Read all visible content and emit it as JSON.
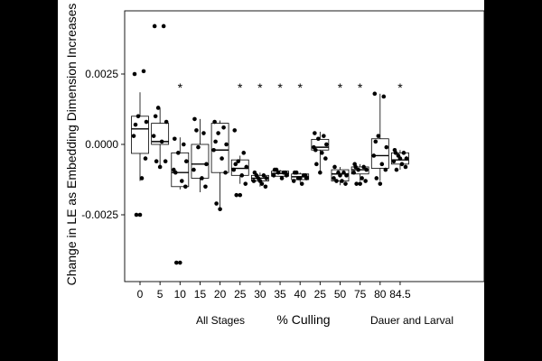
{
  "chart_data": {
    "type": "box",
    "ylabel": "Change in LE as Embedding Dimension Increases",
    "xlabel": "% Culling",
    "group_labels": [
      "All Stages",
      "Dauer and Larval"
    ],
    "y_ticks": [
      0.0025,
      0.0,
      -0.0025
    ],
    "y_tick_labels": [
      "0.0025",
      "0.0000",
      "-0.0025"
    ],
    "ylim": [
      -0.0047,
      0.0047
    ],
    "categories": [
      "0",
      "5",
      "10",
      "15",
      "20",
      "25",
      "30",
      "35",
      "40",
      "25",
      "50",
      "75",
      "80",
      "84.5"
    ],
    "significance_marker": "*",
    "boxes": [
      {
        "category": "0",
        "q1": -0.00032,
        "median": 0.00055,
        "q3": 0.001,
        "whisker_low": -0.0013,
        "whisker_high": 0.00185,
        "significant": false
      },
      {
        "category": "5",
        "q1": 0.0,
        "median": 0.0001,
        "q3": 0.00075,
        "whisker_low": -0.00085,
        "whisker_high": 0.0013,
        "significant": false
      },
      {
        "category": "10",
        "q1": -0.0015,
        "median": -0.001,
        "q3": -0.0003,
        "whisker_low": -0.0016,
        "whisker_high": 0.00025,
        "significant": true
      },
      {
        "category": "15",
        "q1": -0.0012,
        "median": -0.0007,
        "q3": 0.0,
        "whisker_low": -0.0017,
        "whisker_high": 0.0009,
        "significant": false
      },
      {
        "category": "20",
        "q1": -0.001,
        "median": -0.0002,
        "q3": 0.00075,
        "whisker_low": -0.00235,
        "whisker_high": 0.00085,
        "significant": false
      },
      {
        "category": "25",
        "q1": -0.0011,
        "median": -0.00085,
        "q3": -0.00055,
        "whisker_low": -0.0014,
        "whisker_high": -0.0004,
        "significant": true
      },
      {
        "category": "30",
        "q1": -0.0013,
        "median": -0.0012,
        "q3": -0.0011,
        "whisker_low": -0.0015,
        "whisker_high": -0.001,
        "significant": true
      },
      {
        "category": "35",
        "q1": -0.00113,
        "median": -0.00103,
        "q3": -0.00095,
        "whisker_low": -0.00115,
        "whisker_high": -0.0009,
        "significant": true
      },
      {
        "category": "40",
        "q1": -0.00125,
        "median": -0.00115,
        "q3": -0.00105,
        "whisker_low": -0.00135,
        "whisker_high": -0.001,
        "significant": true
      },
      {
        "category": "25",
        "q1": -0.0002,
        "median": -0.0001,
        "q3": 0.00018,
        "whisker_low": -0.001,
        "whisker_high": 0.00045,
        "significant": false
      },
      {
        "category": "50",
        "q1": -0.0013,
        "median": -0.00105,
        "q3": -0.0009,
        "whisker_low": -0.00145,
        "whisker_high": -0.0008,
        "significant": true
      },
      {
        "category": "75",
        "q1": -0.00105,
        "median": -0.0009,
        "q3": -0.0008,
        "whisker_low": -0.0013,
        "whisker_high": -0.0007,
        "significant": true
      },
      {
        "category": "80",
        "q1": -0.00085,
        "median": -0.0004,
        "q3": 0.0002,
        "whisker_low": -0.0013,
        "whisker_high": 0.0018,
        "significant": false
      },
      {
        "category": "84.5",
        "q1": -0.0007,
        "median": -0.00055,
        "q3": -0.0003,
        "whisker_low": -0.0009,
        "whisker_high": -0.0002,
        "significant": true
      }
    ],
    "points": [
      [
        0.0025,
        0.0026,
        0.001,
        0.0008,
        0.0003,
        -0.0012,
        -0.0005,
        -0.0025,
        -0.0025,
        0.0007
      ],
      [
        0.0042,
        0.0042,
        0.0013,
        0.0008,
        0.0003,
        0.0001,
        -0.0006,
        -0.0006,
        -0.0008,
        0.001
      ],
      [
        0.0002,
        0.0,
        -0.0003,
        -0.0006,
        -0.0009,
        -0.0013,
        -0.0015,
        -0.0042,
        -0.0042,
        -0.001
      ],
      [
        0.0009,
        0.0004,
        -0.0001,
        -0.0007,
        -0.0009,
        -0.0012,
        -0.0015,
        0.0005
      ],
      [
        0.0008,
        0.0006,
        0.0004,
        0.0,
        -0.0002,
        -0.0005,
        -0.001,
        -0.0021,
        -0.0023,
        0.0001
      ],
      [
        0.0005,
        -0.0003,
        -0.0006,
        -0.0008,
        -0.0009,
        -0.0011,
        -0.0014,
        -0.0018,
        -0.0018,
        -0.0007
      ],
      [
        -0.001,
        -0.0011,
        -0.0012,
        -0.0012,
        -0.0013,
        -0.0014,
        -0.0015,
        -0.0011,
        -0.0013
      ],
      [
        -0.0009,
        -0.001,
        -0.001,
        -0.0011,
        -0.0011,
        -0.0012,
        -0.001,
        -0.0009
      ],
      [
        -0.001,
        -0.0011,
        -0.0012,
        -0.0012,
        -0.0013,
        -0.0014,
        -0.0011,
        -0.001,
        -0.0012
      ],
      [
        0.0004,
        0.0003,
        0.0002,
        0.0,
        -0.0001,
        -0.0003,
        -0.0005,
        -0.0007,
        -0.001,
        -0.0002
      ],
      [
        -0.0008,
        -0.001,
        -0.001,
        -0.0011,
        -0.0012,
        -0.0013,
        -0.0014,
        -0.0013,
        -0.0011
      ],
      [
        -0.0007,
        -0.0008,
        -0.0009,
        -0.0009,
        -0.001,
        -0.0012,
        -0.0013,
        -0.0014,
        -0.0014,
        -0.0008
      ],
      [
        0.0018,
        0.0017,
        0.0003,
        -0.0001,
        -0.0004,
        -0.0007,
        -0.0009,
        -0.0012,
        -0.0014,
        0.0001
      ],
      [
        -0.0002,
        -0.0003,
        -0.0004,
        -0.0005,
        -0.0006,
        -0.0007,
        -0.0008,
        -0.0009,
        -0.0005,
        -0.0003
      ]
    ]
  }
}
